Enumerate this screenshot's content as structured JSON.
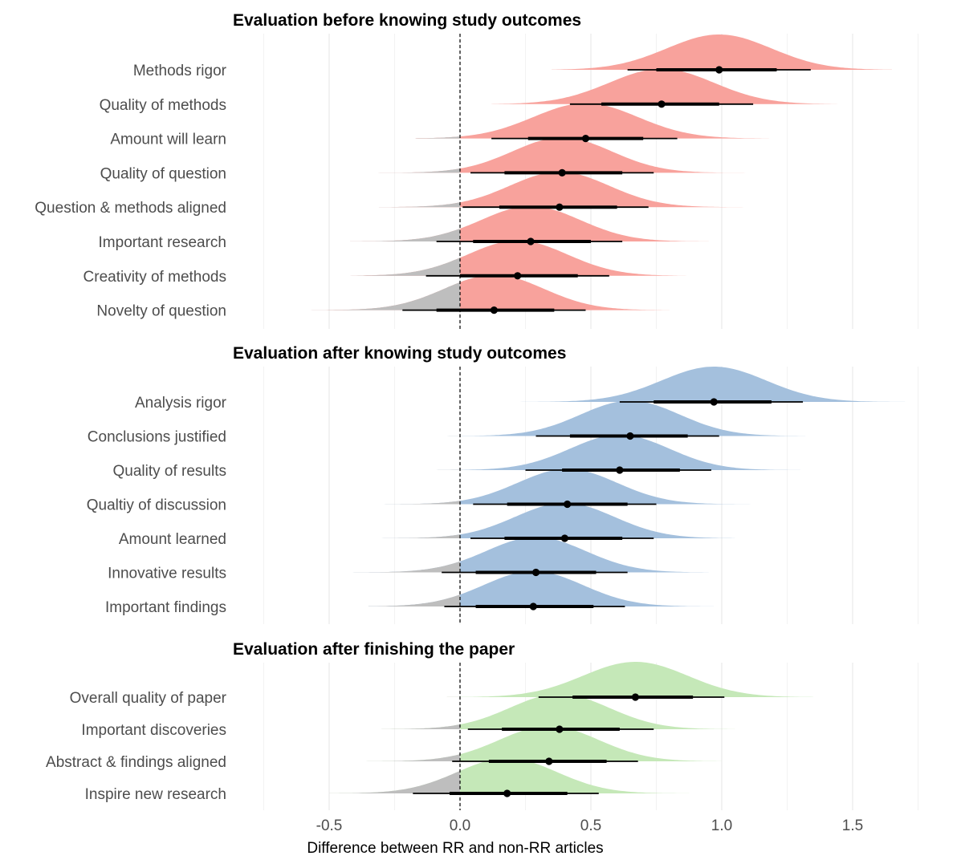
{
  "chart_data": {
    "type": "density-interval",
    "xlabel": "Difference between RR and non-RR articles",
    "xlim": [
      -0.75,
      1.75
    ],
    "xticks": [
      -0.5,
      0.0,
      0.5,
      1.0,
      1.5
    ],
    "xtick_labels": [
      "-0.5",
      "0.0",
      "0.5",
      "1.0",
      "1.5"
    ],
    "reference_line": 0.0,
    "grid": true,
    "below_zero_color": "#bebebe",
    "panels": [
      {
        "title": "Evaluation before knowing study outcomes",
        "color": "#f8a29c",
        "items": [
          {
            "label": "Methods rigor",
            "median": 0.99,
            "inner": [
              0.75,
              1.21
            ],
            "outer": [
              0.64,
              1.34
            ],
            "sd": 0.2,
            "range": [
              0.35,
              1.65
            ]
          },
          {
            "label": "Quality of methods",
            "median": 0.77,
            "inner": [
              0.54,
              0.99
            ],
            "outer": [
              0.42,
              1.12
            ],
            "sd": 0.2,
            "range": [
              0.12,
              1.47
            ]
          },
          {
            "label": "Amount will learn",
            "median": 0.48,
            "inner": [
              0.26,
              0.7
            ],
            "outer": [
              0.12,
              0.83
            ],
            "sd": 0.2,
            "range": [
              -0.17,
              1.18
            ]
          },
          {
            "label": "Quality of question",
            "median": 0.39,
            "inner": [
              0.17,
              0.62
            ],
            "outer": [
              0.04,
              0.74
            ],
            "sd": 0.19,
            "range": [
              -0.36,
              1.1
            ]
          },
          {
            "label": "Question & methods aligned",
            "median": 0.38,
            "inner": [
              0.15,
              0.6
            ],
            "outer": [
              0.01,
              0.72
            ],
            "sd": 0.19,
            "range": [
              -0.31,
              1.12
            ]
          },
          {
            "label": "Important research",
            "median": 0.27,
            "inner": [
              0.05,
              0.5
            ],
            "outer": [
              -0.09,
              0.62
            ],
            "sd": 0.19,
            "range": [
              -0.42,
              0.95
            ]
          },
          {
            "label": "Creativity of methods",
            "median": 0.22,
            "inner": [
              0.0,
              0.45
            ],
            "outer": [
              -0.13,
              0.57
            ],
            "sd": 0.19,
            "range": [
              -0.43,
              0.9
            ]
          },
          {
            "label": "Novelty of question",
            "median": 0.13,
            "inner": [
              -0.09,
              0.36
            ],
            "outer": [
              -0.22,
              0.48
            ],
            "sd": 0.19,
            "range": [
              -0.58,
              0.8
            ]
          }
        ]
      },
      {
        "title": "Evaluation after knowing study outcomes",
        "color": "#a4c0dd",
        "items": [
          {
            "label": "Analysis rigor",
            "median": 0.97,
            "inner": [
              0.74,
              1.19
            ],
            "outer": [
              0.61,
              1.31
            ],
            "sd": 0.2,
            "range": [
              0.22,
              1.7
            ]
          },
          {
            "label": "Conclusions justified",
            "median": 0.65,
            "inner": [
              0.42,
              0.87
            ],
            "outer": [
              0.29,
              0.99
            ],
            "sd": 0.19,
            "range": [
              -0.05,
              1.32
            ]
          },
          {
            "label": "Quality of results",
            "median": 0.61,
            "inner": [
              0.39,
              0.84
            ],
            "outer": [
              0.25,
              0.96
            ],
            "sd": 0.19,
            "range": [
              -0.1,
              1.3
            ]
          },
          {
            "label": "Qualtiy of discussion",
            "median": 0.41,
            "inner": [
              0.18,
              0.64
            ],
            "outer": [
              0.05,
              0.75
            ],
            "sd": 0.19,
            "range": [
              -0.36,
              1.2
            ]
          },
          {
            "label": "Amount learned",
            "median": 0.4,
            "inner": [
              0.17,
              0.62
            ],
            "outer": [
              0.04,
              0.74
            ],
            "sd": 0.19,
            "range": [
              -0.3,
              1.05
            ]
          },
          {
            "label": "Innovative results",
            "median": 0.29,
            "inner": [
              0.06,
              0.52
            ],
            "outer": [
              -0.07,
              0.64
            ],
            "sd": 0.19,
            "range": [
              -0.42,
              0.95
            ]
          },
          {
            "label": "Important findings",
            "median": 0.28,
            "inner": [
              0.06,
              0.51
            ],
            "outer": [
              -0.06,
              0.63
            ],
            "sd": 0.19,
            "range": [
              -0.35,
              0.97
            ]
          }
        ]
      },
      {
        "title": "Evaluation after finishing the paper",
        "color": "#c5e8b8",
        "items": [
          {
            "label": "Overall quality of paper",
            "median": 0.67,
            "inner": [
              0.43,
              0.89
            ],
            "outer": [
              0.3,
              1.01
            ],
            "sd": 0.2,
            "range": [
              -0.05,
              1.35
            ]
          },
          {
            "label": "Important discoveries",
            "median": 0.38,
            "inner": [
              0.16,
              0.61
            ],
            "outer": [
              0.03,
              0.74
            ],
            "sd": 0.19,
            "range": [
              -0.3,
              1.05
            ]
          },
          {
            "label": "Abstract & findings aligned",
            "median": 0.34,
            "inner": [
              0.11,
              0.56
            ],
            "outer": [
              -0.03,
              0.68
            ],
            "sd": 0.19,
            "range": [
              -0.36,
              1.0
            ]
          },
          {
            "label": "Inspire new research",
            "median": 0.18,
            "inner": [
              -0.04,
              0.41
            ],
            "outer": [
              -0.18,
              0.53
            ],
            "sd": 0.19,
            "range": [
              -0.5,
              0.88
            ]
          }
        ]
      }
    ]
  }
}
